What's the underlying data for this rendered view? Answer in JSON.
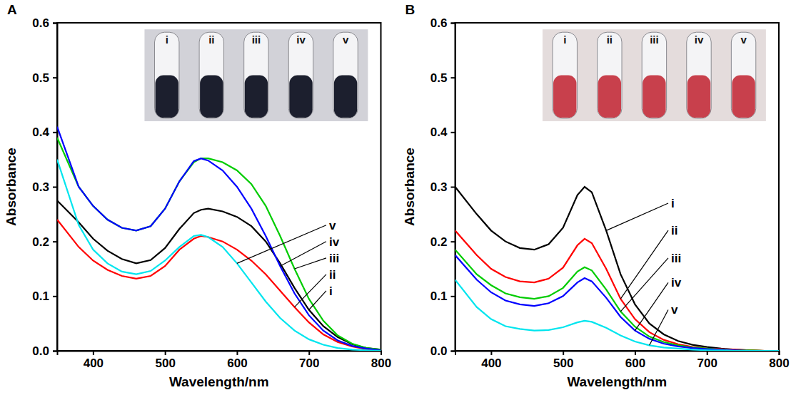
{
  "chart_data": [
    {
      "type": "line",
      "title": "A",
      "x_label": "Wavelength/nm",
      "y_label": "Absorbance",
      "xlim": [
        350,
        800
      ],
      "ylim": [
        0,
        0.6
      ],
      "xticks": [
        400,
        500,
        600,
        700,
        800
      ],
      "yticks": [
        {
          "value": 0,
          "label": "0.0"
        },
        0.1,
        0.2,
        0.3,
        0.4,
        0.5,
        0.6
      ],
      "x": [
        350,
        380,
        400,
        420,
        440,
        460,
        480,
        500,
        520,
        540,
        550,
        560,
        580,
        600,
        620,
        640,
        660,
        680,
        700,
        720,
        740,
        760,
        780,
        800
      ],
      "series": [
        {
          "name": "i",
          "color": "#000000",
          "values": [
            0.275,
            0.235,
            0.205,
            0.183,
            0.168,
            0.16,
            0.166,
            0.188,
            0.223,
            0.252,
            0.258,
            0.26,
            0.255,
            0.245,
            0.228,
            0.2,
            0.16,
            0.115,
            0.075,
            0.045,
            0.025,
            0.012,
            0.005,
            0.002
          ]
        },
        {
          "name": "ii",
          "color": "#ff0000",
          "values": [
            0.24,
            0.19,
            0.165,
            0.148,
            0.137,
            0.132,
            0.137,
            0.155,
            0.185,
            0.205,
            0.21,
            0.208,
            0.2,
            0.185,
            0.165,
            0.14,
            0.11,
            0.08,
            0.052,
            0.03,
            0.016,
            0.008,
            0.003,
            0.001
          ]
        },
        {
          "name": "iii",
          "color": "#00cc00",
          "values": [
            0.39,
            0.3,
            0.265,
            0.24,
            0.225,
            0.22,
            0.228,
            0.26,
            0.31,
            0.345,
            0.352,
            0.352,
            0.345,
            0.33,
            0.305,
            0.265,
            0.21,
            0.15,
            0.095,
            0.055,
            0.028,
            0.013,
            0.005,
            0.002
          ]
        },
        {
          "name": "iv",
          "color": "#0000ff",
          "values": [
            0.41,
            0.3,
            0.265,
            0.24,
            0.225,
            0.22,
            0.228,
            0.26,
            0.31,
            0.347,
            0.352,
            0.348,
            0.33,
            0.3,
            0.26,
            0.21,
            0.155,
            0.105,
            0.065,
            0.037,
            0.019,
            0.009,
            0.004,
            0.001
          ]
        },
        {
          "name": "v",
          "color": "#00e5ee",
          "values": [
            0.35,
            0.23,
            0.185,
            0.16,
            0.145,
            0.14,
            0.146,
            0.165,
            0.19,
            0.21,
            0.212,
            0.208,
            0.19,
            0.16,
            0.125,
            0.09,
            0.06,
            0.037,
            0.021,
            0.011,
            0.005,
            0.002,
            0.001,
            0
          ]
        }
      ]
    },
    {
      "type": "line",
      "title": "B",
      "x_label": "Wavelength/nm",
      "y_label": "Absorbance",
      "xlim": [
        350,
        800
      ],
      "ylim": [
        0,
        0.6
      ],
      "xticks": [
        400,
        500,
        600,
        700,
        800
      ],
      "yticks": [
        {
          "value": 0,
          "label": "0.0"
        },
        0.1,
        0.2,
        0.3,
        0.4,
        0.5,
        0.6
      ],
      "x": [
        350,
        380,
        400,
        420,
        440,
        460,
        480,
        500,
        520,
        530,
        540,
        560,
        580,
        600,
        620,
        640,
        660,
        680,
        700,
        720,
        740,
        760,
        780,
        800
      ],
      "series": [
        {
          "name": "i",
          "color": "#000000",
          "values": [
            0.3,
            0.25,
            0.22,
            0.2,
            0.188,
            0.185,
            0.195,
            0.225,
            0.285,
            0.3,
            0.29,
            0.22,
            0.14,
            0.085,
            0.05,
            0.03,
            0.018,
            0.011,
            0.007,
            0.004,
            0.002,
            0.001,
            0,
            0
          ]
        },
        {
          "name": "ii",
          "color": "#ff0000",
          "values": [
            0.22,
            0.175,
            0.15,
            0.135,
            0.127,
            0.125,
            0.132,
            0.152,
            0.193,
            0.205,
            0.197,
            0.15,
            0.095,
            0.058,
            0.034,
            0.02,
            0.012,
            0.007,
            0.004,
            0.003,
            0.002,
            0.001,
            0,
            0
          ]
        },
        {
          "name": "iii",
          "color": "#00cc00",
          "values": [
            0.185,
            0.14,
            0.12,
            0.105,
            0.098,
            0.095,
            0.1,
            0.115,
            0.145,
            0.153,
            0.147,
            0.112,
            0.072,
            0.044,
            0.026,
            0.016,
            0.01,
            0.006,
            0.004,
            0.002,
            0.001,
            0.001,
            0,
            0
          ]
        },
        {
          "name": "iv",
          "color": "#0000ff",
          "values": [
            0.175,
            0.13,
            0.107,
            0.092,
            0.085,
            0.082,
            0.087,
            0.1,
            0.125,
            0.133,
            0.127,
            0.097,
            0.062,
            0.037,
            0.022,
            0.013,
            0.008,
            0.005,
            0.003,
            0.002,
            0.001,
            0,
            0,
            0
          ]
        },
        {
          "name": "v",
          "color": "#00e5ee",
          "values": [
            0.13,
            0.08,
            0.058,
            0.045,
            0.04,
            0.037,
            0.038,
            0.043,
            0.052,
            0.055,
            0.053,
            0.042,
            0.028,
            0.017,
            0.01,
            0.006,
            0.004,
            0.002,
            0.001,
            0.001,
            0,
            0,
            0,
            0
          ]
        }
      ]
    }
  ]
}
